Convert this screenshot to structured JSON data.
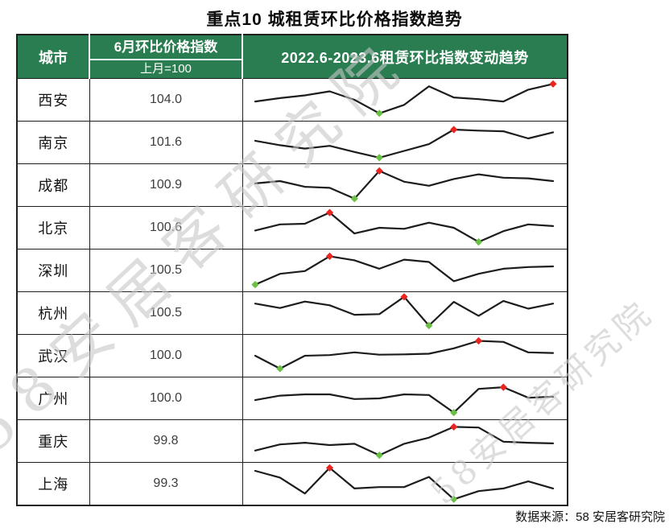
{
  "title": "重点10 城租赁环比价格指数趋势",
  "source": "数据来源：58 安居客研究院",
  "watermark": {
    "text": "58安居客研究院"
  },
  "colors": {
    "header_green": "#2a7d50",
    "header_text": "#ffffff",
    "line": "#1c1c1c",
    "max_marker": "#e8251f",
    "min_marker": "#6abf45",
    "watermark_gray": "#c7c7c7",
    "border": "#1f1f1f"
  },
  "table_headers": {
    "col_city": "城市",
    "col_index_line1": "6月环比价格指数",
    "col_index_line2": "上月=100",
    "col_trend": "2022.6-2023.6租赁环比指数变动趋势"
  },
  "chart_data": {
    "type": "table",
    "title": "重点10 城租赁环比价格指数趋势",
    "columns": [
      "城市",
      "6月环比价格指数 (上月=100)",
      "2022.6-2023.6租赁环比指数变动趋势"
    ],
    "sparkline_period": {
      "start": "2022.6",
      "end": "2023.6",
      "points": 13
    },
    "sparkline_note": "values are relative vertical positions (0=row low,1=row high) read from pixels; red diamond marks max month, green diamond marks min month",
    "rows": [
      {
        "city": "西安",
        "june_index": 104.0,
        "sparkline": [
          0.45,
          0.55,
          0.63,
          0.75,
          0.5,
          0.1,
          0.35,
          0.9,
          0.57,
          0.52,
          0.45,
          0.8,
          0.97
        ],
        "min_point": 5,
        "max_point": 12
      },
      {
        "city": "南京",
        "june_index": 101.6,
        "sparkline": [
          0.55,
          0.42,
          0.32,
          0.4,
          0.22,
          0.05,
          0.25,
          0.45,
          0.88,
          0.85,
          0.83,
          0.62,
          0.8
        ],
        "min_point": 5,
        "max_point": 8
      },
      {
        "city": "成都",
        "june_index": 100.9,
        "sparkline": [
          0.55,
          0.62,
          0.45,
          0.42,
          0.1,
          0.92,
          0.6,
          0.48,
          0.68,
          0.82,
          0.72,
          0.7,
          0.62
        ],
        "min_point": 4,
        "max_point": 5
      },
      {
        "city": "北京",
        "june_index": 100.6,
        "sparkline": [
          0.42,
          0.6,
          0.62,
          0.95,
          0.33,
          0.5,
          0.47,
          0.65,
          0.5,
          0.08,
          0.4,
          0.6,
          0.55
        ],
        "min_point": 9,
        "max_point": 3
      },
      {
        "city": "深圳",
        "june_index": 100.5,
        "sparkline": [
          0.08,
          0.4,
          0.48,
          0.92,
          0.8,
          0.55,
          0.82,
          0.75,
          0.18,
          0.4,
          0.55,
          0.6,
          0.62
        ],
        "min_point": 0,
        "max_point": 3
      },
      {
        "city": "杭州",
        "june_index": 100.5,
        "sparkline": [
          0.78,
          0.65,
          0.84,
          0.73,
          0.45,
          0.47,
          0.98,
          0.13,
          0.83,
          0.42,
          0.86,
          0.63,
          0.78
        ],
        "min_point": 7,
        "max_point": 6
      },
      {
        "city": "武汉",
        "june_index": 100.0,
        "sparkline": [
          0.5,
          0.12,
          0.5,
          0.52,
          0.6,
          0.53,
          0.54,
          0.56,
          0.72,
          0.94,
          0.91,
          0.6,
          0.58
        ],
        "min_point": 1,
        "max_point": 9
      },
      {
        "city": "广州",
        "june_index": 100.0,
        "sparkline": [
          0.45,
          0.58,
          0.62,
          0.62,
          0.48,
          0.5,
          0.62,
          0.6,
          0.08,
          0.78,
          0.83,
          0.52,
          0.55
        ],
        "min_point": 8,
        "max_point": 10
      },
      {
        "city": "重庆",
        "june_index": 99.8,
        "sparkline": [
          0.22,
          0.4,
          0.45,
          0.38,
          0.42,
          0.08,
          0.42,
          0.6,
          0.92,
          0.9,
          0.48,
          0.45,
          0.43
        ],
        "min_point": 5,
        "max_point": 8
      },
      {
        "city": "上海",
        "june_index": 99.3,
        "sparkline": [
          0.88,
          0.68,
          0.21,
          0.97,
          0.36,
          0.4,
          0.4,
          0.7,
          0.04,
          0.28,
          0.36,
          0.57,
          0.36
        ],
        "min_point": 8,
        "max_point": 3
      }
    ]
  }
}
